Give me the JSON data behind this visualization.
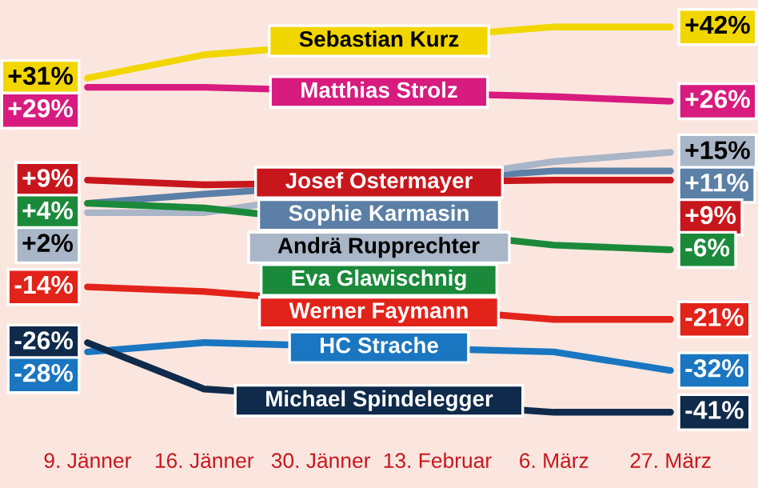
{
  "chart_data": {
    "type": "line",
    "categories": [
      "9. Jänner",
      "16. Jänner",
      "30. Jänner",
      "13. Februar",
      "6. März",
      "27. März"
    ],
    "series": [
      {
        "name": "Sebastian Kurz",
        "color": "#f2d600",
        "values": [
          31,
          36,
          null,
          null,
          42,
          42
        ],
        "value_labels": [
          "+31%",
          null,
          null,
          null,
          null,
          "+42%"
        ]
      },
      {
        "name": "Matthias Strolz",
        "color": "#d81b7e",
        "values": [
          29,
          29,
          null,
          null,
          27,
          26
        ],
        "value_labels": [
          "+29%",
          null,
          null,
          null,
          null,
          "+26%"
        ]
      },
      {
        "name": "Josef Ostermayer",
        "color": "#c8161d",
        "values": [
          9,
          8,
          null,
          null,
          9,
          9
        ],
        "value_labels": [
          "+9%",
          null,
          null,
          null,
          null,
          "+9%"
        ]
      },
      {
        "name": "Sophie Karmasin",
        "color": "#5b7fa6",
        "values": [
          4,
          6,
          null,
          null,
          11,
          11
        ],
        "value_labels": [
          null,
          null,
          null,
          null,
          null,
          "+11%"
        ]
      },
      {
        "name": "Andrä Rupprechter",
        "color": "#a9b6c8",
        "values": [
          2,
          2,
          null,
          null,
          13,
          15
        ],
        "value_labels": [
          "+2%",
          null,
          null,
          null,
          null,
          "+15%"
        ]
      },
      {
        "name": "Eva Glawischnig",
        "color": "#1a8a3a",
        "values": [
          4,
          3,
          null,
          null,
          -5,
          -6
        ],
        "value_labels": [
          "+4%",
          null,
          null,
          null,
          null,
          "-6%"
        ]
      },
      {
        "name": "Werner Faymann",
        "color": "#e2231a",
        "values": [
          -14,
          -15,
          null,
          null,
          -21,
          -21
        ],
        "value_labels": [
          "-14%",
          null,
          null,
          null,
          null,
          "-21%"
        ]
      },
      {
        "name": "HC Strache",
        "color": "#1a76c0",
        "values": [
          -28,
          -26,
          null,
          null,
          -28,
          -32
        ],
        "value_labels": [
          "-28%",
          null,
          null,
          null,
          null,
          "-32%"
        ]
      },
      {
        "name": "Michael Spindelegger",
        "color": "#0f2a4a",
        "values": [
          -26,
          -36,
          null,
          null,
          -41,
          -41
        ],
        "value_labels": [
          "-26%",
          null,
          null,
          null,
          null,
          "-41%"
        ]
      }
    ]
  }
}
